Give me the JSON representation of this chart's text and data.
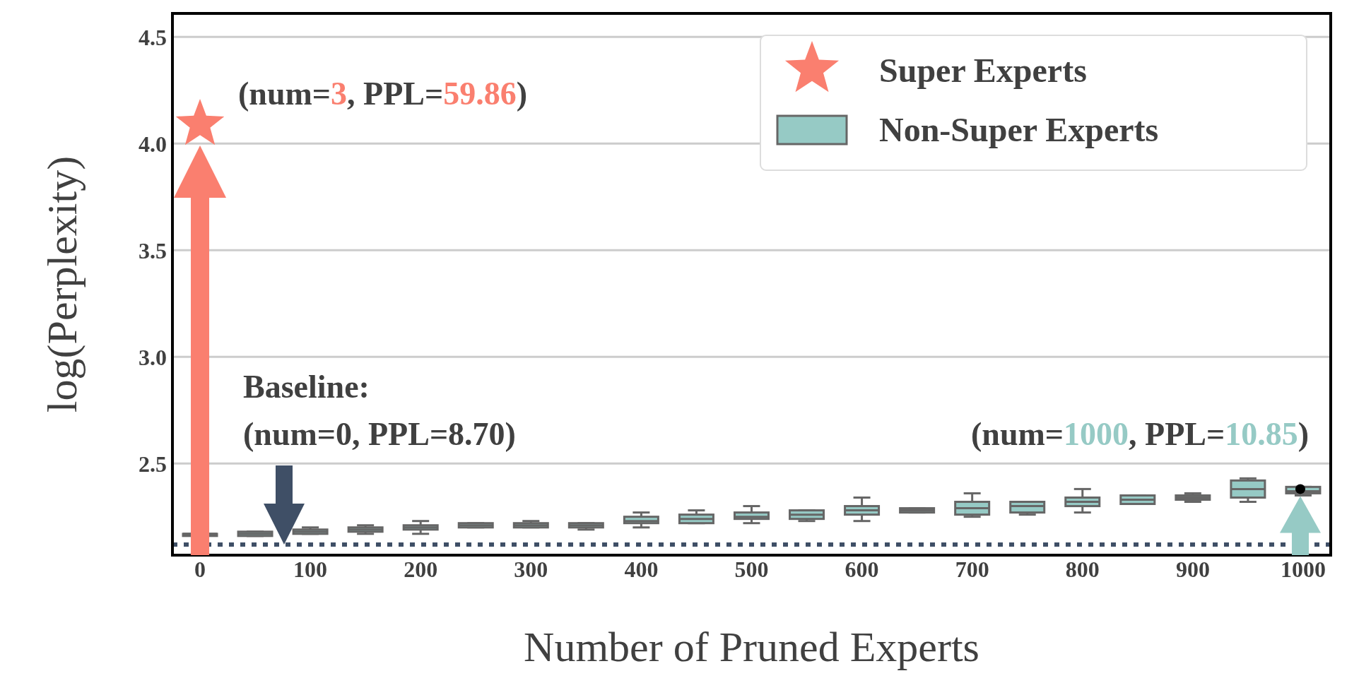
{
  "chart_data": {
    "type": "box",
    "xlabel": "Number of Pruned Experts",
    "ylabel": "log(Perplexity)",
    "categories": [
      "0",
      null,
      "100",
      null,
      "200",
      null,
      "300",
      null,
      "400",
      null,
      "500",
      null,
      "600",
      null,
      "700",
      null,
      "800",
      null,
      "900",
      null,
      "1000"
    ],
    "ylim": [
      2.07,
      4.61
    ],
    "yticks": [
      2.5,
      {
        "value": 3,
        "label": "3.0"
      },
      3.5,
      {
        "value": 4,
        "label": "4.0"
      },
      4.5
    ],
    "grid": "y",
    "legend": "top right",
    "series": [
      {
        "name": "Super Experts",
        "type": "scatter",
        "marker": "star",
        "color": "#fa7f6f",
        "x": [
          "0"
        ],
        "values": [
          4.09
        ]
      },
      {
        "name": "Non-Super Experts",
        "color": "#96cac5",
        "boxes": [
          {
            "low": 2.16,
            "q1": 2.16,
            "median": 2.17,
            "q3": 2.17,
            "high": 2.17
          },
          {
            "low": 2.16,
            "q1": 2.16,
            "median": 2.17,
            "q3": 2.18,
            "high": 2.18
          },
          {
            "low": 2.17,
            "q1": 2.17,
            "median": 2.18,
            "q3": 2.19,
            "high": 2.2
          },
          {
            "low": 2.17,
            "q1": 2.18,
            "median": 2.19,
            "q3": 2.2,
            "high": 2.21
          },
          {
            "low": 2.17,
            "q1": 2.19,
            "median": 2.2,
            "q3": 2.21,
            "high": 2.23
          },
          {
            "low": 2.2,
            "q1": 2.2,
            "median": 2.21,
            "q3": 2.22,
            "high": 2.22
          },
          {
            "low": 2.2,
            "q1": 2.2,
            "median": 2.21,
            "q3": 2.22,
            "high": 2.23
          },
          {
            "low": 2.19,
            "q1": 2.2,
            "median": 2.21,
            "q3": 2.22,
            "high": 2.22
          },
          {
            "low": 2.2,
            "q1": 2.22,
            "median": 2.23,
            "q3": 2.25,
            "high": 2.27
          },
          {
            "low": 2.22,
            "q1": 2.22,
            "median": 2.24,
            "q3": 2.26,
            "high": 2.28
          },
          {
            "low": 2.22,
            "q1": 2.24,
            "median": 2.25,
            "q3": 2.27,
            "high": 2.3
          },
          {
            "low": 2.23,
            "q1": 2.24,
            "median": 2.26,
            "q3": 2.28,
            "high": 2.28
          },
          {
            "low": 2.23,
            "q1": 2.26,
            "median": 2.28,
            "q3": 2.3,
            "high": 2.34
          },
          {
            "low": 2.27,
            "q1": 2.27,
            "median": 2.28,
            "q3": 2.29,
            "high": 2.29
          },
          {
            "low": 2.25,
            "q1": 2.26,
            "median": 2.29,
            "q3": 2.32,
            "high": 2.36
          },
          {
            "low": 2.26,
            "q1": 2.27,
            "median": 2.3,
            "q3": 2.32,
            "high": 2.32
          },
          {
            "low": 2.27,
            "q1": 2.3,
            "median": 2.32,
            "q3": 2.34,
            "high": 2.38
          },
          {
            "low": 2.31,
            "q1": 2.31,
            "median": 2.33,
            "q3": 2.35,
            "high": 2.35
          },
          {
            "low": 2.32,
            "q1": 2.33,
            "median": 2.34,
            "q3": 2.35,
            "high": 2.36
          },
          {
            "low": 2.32,
            "q1": 2.34,
            "median": 2.38,
            "q3": 2.42,
            "high": 2.43
          },
          {
            "low": 2.35,
            "q1": 2.36,
            "median": 2.37,
            "q3": 2.39,
            "high": 2.39
          }
        ]
      }
    ],
    "ref_lines": [
      {
        "axis": "y",
        "value": 2.12,
        "color": "#3f4f66",
        "line_style": "dotted"
      }
    ],
    "annotations": [
      {
        "text": "Baseline: (num=0, PPL=8.70)",
        "y": 2.12
      },
      {
        "text": "(num=3, PPL=59.86)",
        "x": "0",
        "y": 4.09
      },
      {
        "text": "(num=1000, PPL=10.85)",
        "x": "1000",
        "y": 2.38
      }
    ]
  }
}
